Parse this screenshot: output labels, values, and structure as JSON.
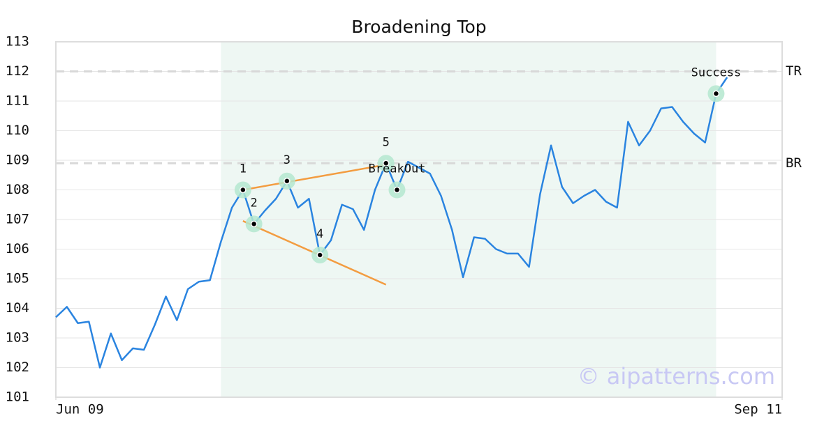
{
  "chart_data": {
    "type": "line",
    "title": "Broadening Top",
    "x": [
      0,
      1,
      2,
      3,
      4,
      5,
      6,
      7,
      8,
      9,
      10,
      11,
      12,
      13,
      14,
      15,
      16,
      17,
      18,
      19,
      20,
      21,
      22,
      23,
      24,
      25,
      26,
      27,
      28,
      29,
      30,
      31,
      32,
      33,
      34,
      35,
      36,
      37,
      38,
      39,
      40,
      41,
      42,
      43,
      44,
      45,
      46,
      47,
      48,
      49,
      50,
      51,
      52,
      53,
      54,
      55,
      56,
      57,
      58,
      59,
      60,
      61
    ],
    "series": [
      {
        "name": "Price",
        "color": "#2a84e0",
        "values": [
          103.7,
          104.05,
          103.5,
          103.55,
          102.0,
          103.15,
          102.25,
          102.65,
          102.6,
          103.45,
          104.4,
          103.6,
          104.65,
          104.9,
          104.95,
          106.25,
          107.4,
          108.0,
          106.85,
          107.3,
          107.7,
          108.3,
          107.4,
          107.7,
          105.8,
          106.3,
          107.5,
          107.35,
          106.65,
          108.0,
          108.9,
          108.0,
          108.95,
          108.75,
          108.55,
          107.8,
          106.65,
          105.05,
          106.4,
          106.35,
          106.0,
          105.85,
          105.85,
          105.4,
          107.85,
          109.5,
          108.1,
          107.55,
          107.8,
          108.0,
          107.6,
          107.4,
          110.3,
          109.5,
          110.0,
          110.75,
          110.8,
          110.3,
          109.9,
          109.6,
          111.25,
          111.8
        ]
      }
    ],
    "xlim": [
      0,
      66
    ],
    "xticks": [
      {
        "value": 0,
        "label": "Jun 09"
      },
      {
        "value": 66,
        "label": "Sep 11"
      }
    ],
    "ylim": [
      101,
      113
    ],
    "yticks": [
      101,
      102,
      103,
      104,
      105,
      106,
      107,
      108,
      109,
      110,
      111,
      112,
      113
    ],
    "grid": true,
    "highlight_range": [
      15,
      60
    ],
    "highlight_color": "#eef7f3",
    "annotations": [
      {
        "label": "1",
        "x": 17,
        "y": 108.0
      },
      {
        "label": "2",
        "x": 18,
        "y": 106.85
      },
      {
        "label": "3",
        "x": 21,
        "y": 108.3
      },
      {
        "label": "4",
        "x": 24,
        "y": 105.8
      },
      {
        "label": "5",
        "x": 30,
        "y": 108.9
      },
      {
        "label": "BreakOut",
        "x": 31,
        "y": 108.0
      },
      {
        "label": "Success",
        "x": 60,
        "y": 111.25
      }
    ],
    "trend_lines": [
      {
        "color": "#f39c40",
        "x": [
          17,
          30
        ],
        "y": [
          108.0,
          108.85
        ]
      },
      {
        "color": "#f39c40",
        "x": [
          17,
          30
        ],
        "y": [
          106.95,
          104.8
        ]
      }
    ],
    "reference_lines": [
      {
        "label": "TR",
        "value": 112.0
      },
      {
        "label": "BR",
        "value": 108.9
      }
    ],
    "watermark": "© aipatterns.com"
  }
}
